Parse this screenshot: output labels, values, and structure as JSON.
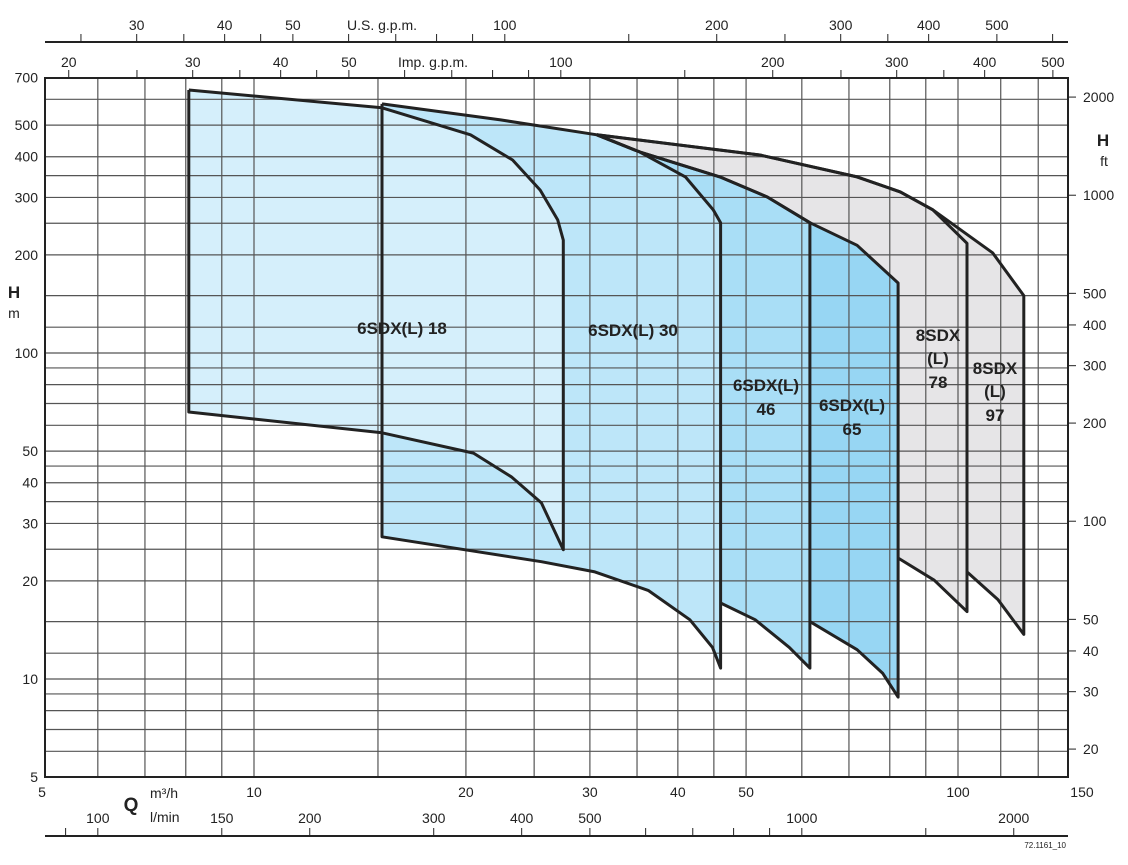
{
  "chart_data": {
    "type": "area",
    "x_scale": "log",
    "y_scale": "log",
    "xlim": [
      5,
      143
    ],
    "ylim": [
      5,
      700
    ],
    "grid": true,
    "xlabel": "Q",
    "x_unit": "m³/h",
    "x2_unit": "l/min",
    "ylabel": "H",
    "y_unit": "m",
    "y2_unit": "ft",
    "top_axis_us": "U.S. g.p.m.",
    "top_axis_imp": "Imp. g.p.m.",
    "x_ticks": [
      "5",
      "10",
      "20",
      "30",
      "40",
      "50",
      "100",
      "150"
    ],
    "x_lmin_ticks": [
      "100",
      "150",
      "200",
      "300",
      "400",
      "500",
      "1000",
      "2000"
    ],
    "x_us_gpm_ticks": [
      "30",
      "40",
      "50",
      "100",
      "200",
      "300",
      "400",
      "500"
    ],
    "x_imp_gpm_ticks": [
      "20",
      "30",
      "40",
      "50",
      "100",
      "200",
      "300",
      "400",
      "500"
    ],
    "y_ticks": [
      "5",
      "10",
      "20",
      "30",
      "40",
      "50",
      "100",
      "200",
      "300",
      "400",
      "500",
      "700"
    ],
    "y_ft_ticks": [
      "20",
      "30",
      "40",
      "50",
      "100",
      "200",
      "300",
      "400",
      "500",
      "1000",
      "2000"
    ],
    "code": "72.1161_10",
    "series": [
      {
        "name": "8SDX(L) 97",
        "label_lines": [
          "8SDX",
          "(L)",
          "97"
        ],
        "color": "#e6e5e7",
        "upper": [
          [
            30.7,
            467
          ],
          [
            52.3,
            405
          ],
          [
            71.9,
            347
          ],
          [
            82.8,
            312
          ],
          [
            92.1,
            275
          ],
          [
            112,
            203
          ],
          [
            124,
            150
          ]
        ],
        "lower": [
          [
            103,
            21.3
          ],
          [
            114,
            17.5
          ],
          [
            124,
            13.7
          ]
        ]
      },
      {
        "name": "8SDX(L) 78",
        "label_lines": [
          "8SDX",
          "(L)",
          "78"
        ],
        "color": "#e6e5e7",
        "upper": [
          [
            30.7,
            467
          ],
          [
            52.3,
            405
          ],
          [
            71.9,
            347
          ],
          [
            82.8,
            312
          ],
          [
            92.1,
            275
          ],
          [
            103,
            217
          ]
        ],
        "lower": [
          [
            82.2,
            23.5
          ],
          [
            92.5,
            20.1
          ],
          [
            103,
            16.1
          ]
        ]
      },
      {
        "name": "6SDX(L) 65",
        "label_lines": [
          "6SDX(L)",
          "65"
        ],
        "color": "#97d6f3",
        "upper": [
          [
            30.7,
            467
          ],
          [
            35.3,
            414
          ],
          [
            45.9,
            347
          ],
          [
            53.6,
            301
          ],
          [
            61.6,
            251
          ],
          [
            71.9,
            214
          ],
          [
            82.2,
            164
          ]
        ],
        "lower": [
          [
            61.6,
            15.0
          ],
          [
            71.9,
            12.3
          ],
          [
            78.2,
            10.4
          ],
          [
            82.2,
            8.8
          ]
        ]
      },
      {
        "name": "6SDX(L) 46",
        "label_lines": [
          "6SDX(L)",
          "46"
        ],
        "color": "#a9def6",
        "upper": [
          [
            30.7,
            467
          ],
          [
            35.3,
            414
          ],
          [
            45.9,
            347
          ],
          [
            53.6,
            301
          ],
          [
            61.6,
            251
          ]
        ],
        "lower": [
          [
            46.0,
            17.1
          ],
          [
            51.5,
            15.2
          ],
          [
            57.6,
            12.5
          ],
          [
            61.6,
            10.8
          ]
        ]
      },
      {
        "name": "6SDX(L) 30",
        "label_lines": [
          "6SDX(L) 30"
        ],
        "color": "#bde6f9",
        "upper": [
          [
            15.2,
            581
          ],
          [
            22.4,
            519
          ],
          [
            30.7,
            467
          ],
          [
            35.3,
            414
          ],
          [
            41.0,
            347
          ],
          [
            44.9,
            275
          ],
          [
            46.0,
            251
          ]
        ],
        "lower": [
          [
            15.2,
            27.3
          ],
          [
            25.6,
            22.9
          ],
          [
            30.5,
            21.3
          ],
          [
            36.3,
            18.7
          ],
          [
            41.6,
            15.2
          ],
          [
            44.8,
            12.5
          ],
          [
            46.0,
            10.8
          ]
        ]
      },
      {
        "name": "6SDX(L) 18",
        "label_lines": [
          "6SDX(L) 18"
        ],
        "color": "#d5effb",
        "upper": [
          [
            8.08,
            641
          ],
          [
            15.2,
            565
          ],
          [
            20.3,
            467
          ],
          [
            23.3,
            391
          ],
          [
            25.5,
            316
          ],
          [
            27.0,
            256
          ],
          [
            27.5,
            222
          ]
        ],
        "lower": [
          [
            8.08,
            65.9
          ],
          [
            15.2,
            56.9
          ],
          [
            20.5,
            49.3
          ],
          [
            23.2,
            41.7
          ],
          [
            25.6,
            34.7
          ],
          [
            27.5,
            24.9
          ]
        ]
      }
    ]
  }
}
